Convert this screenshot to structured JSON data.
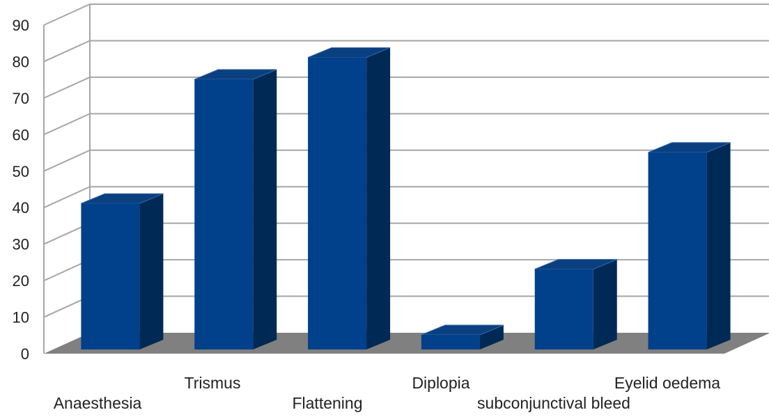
{
  "chart_data": {
    "type": "bar",
    "style": "3d-column",
    "title": "",
    "xlabel": "",
    "ylabel": "",
    "categories": [
      "Anaesthesia",
      "Trismus",
      "Flattening",
      "Diplopia",
      "subconjunctival bleed",
      "Eyelid oedema"
    ],
    "values": [
      40,
      74,
      80,
      4,
      22,
      54
    ],
    "ylim": [
      0,
      90
    ],
    "yticks": [
      "0",
      "10",
      "20",
      "30",
      "40",
      "50",
      "60",
      "70",
      "80",
      "90"
    ],
    "grid": true,
    "legend": "none",
    "colors": {
      "bar_front": "#01408a",
      "bar_top": "#0a3f80",
      "bar_side": "#002a55",
      "floor": "#808080",
      "gridline": "#a6a6a6"
    }
  }
}
